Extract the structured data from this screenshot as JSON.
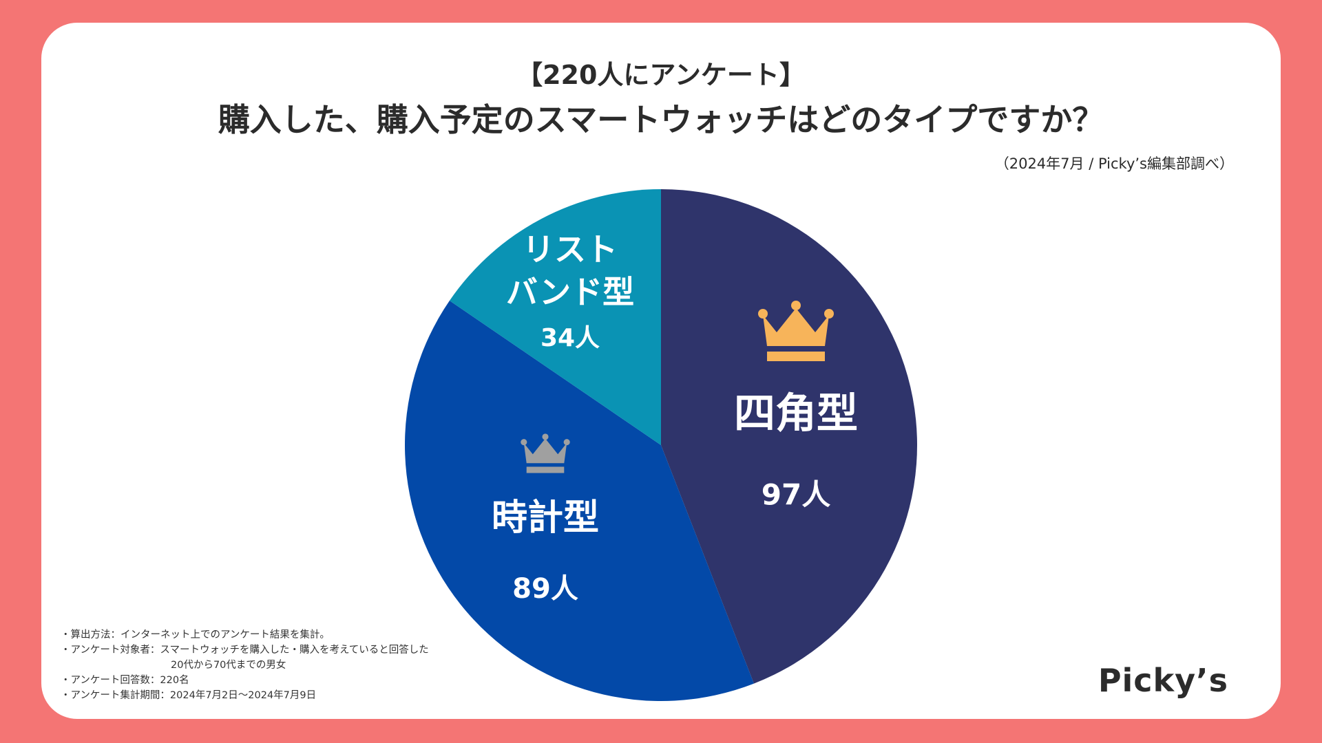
{
  "header": {
    "subtitle": "【220人にアンケート】",
    "title": "購入した、購入予定のスマートウォッチはどのタイプですか？",
    "source": "（2024年7月 / Picky’s編集部調べ）"
  },
  "chart_data": {
    "type": "pie",
    "title": "購入した、購入予定のスマートウォッチはどのタイプですか？",
    "total": 220,
    "unit": "人",
    "slices": [
      {
        "label": "四角型",
        "value": 97,
        "value_label": "97人",
        "color": "#2f346b",
        "rank": 1
      },
      {
        "label": "時計型",
        "value": 89,
        "value_label": "89人",
        "color": "#0349a8",
        "rank": 2
      },
      {
        "label": "リスト",
        "label2": "バンド型",
        "value": 34,
        "value_label": "34人",
        "color": "#0a93b4",
        "rank": 3
      }
    ],
    "crown_colors": {
      "gold": "#f7b45a",
      "silver": "#a0a0a0"
    }
  },
  "notes": [
    "・算出方法：インターネット上でのアンケート結果を集計。",
    "・アンケート対象者：スマートウォッチを購入した・購入を考えていると回答した",
    "20代から70代までの男女",
    "・アンケート回答数：220名",
    "・アンケート集計期間：2024年7月2日〜2024年7月9日"
  ],
  "logo": "Picky’s"
}
